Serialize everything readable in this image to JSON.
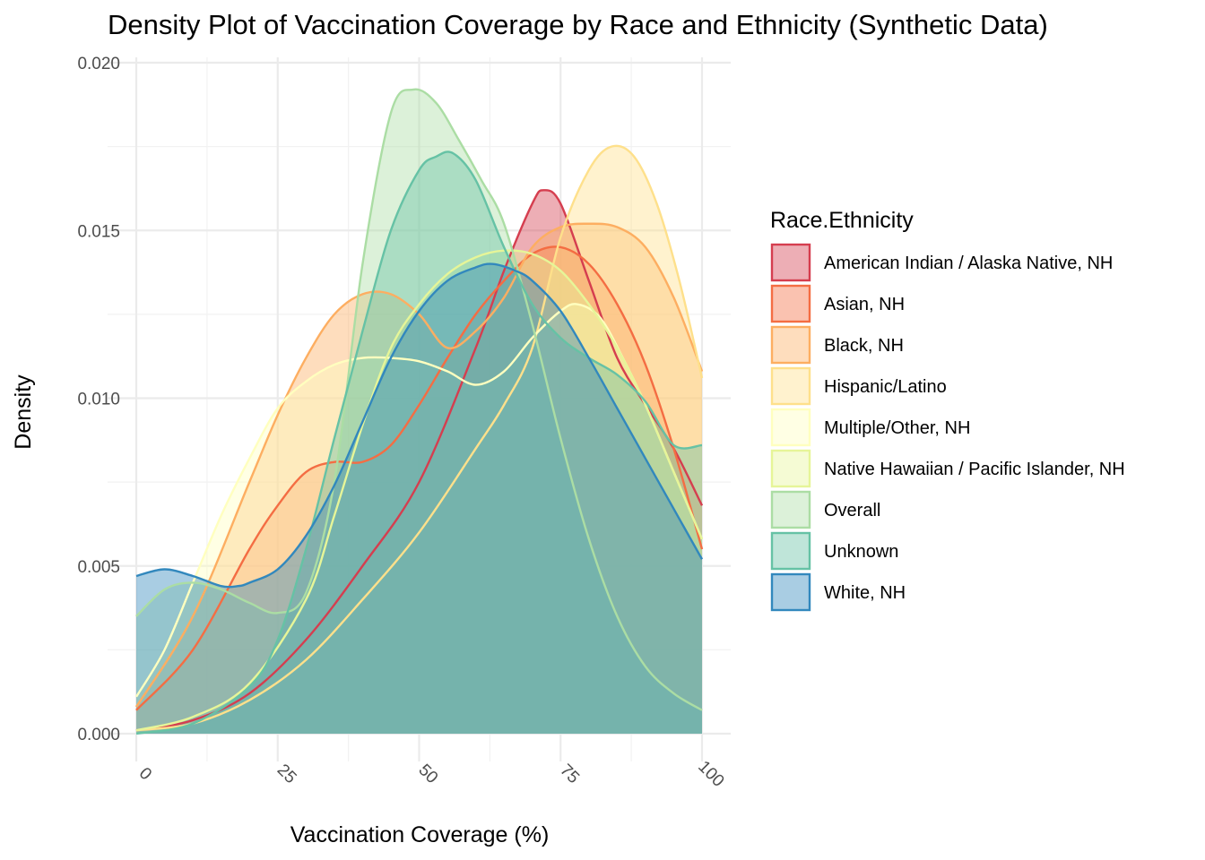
{
  "chart_data": {
    "type": "area",
    "subtype": "density",
    "title": "Density Plot of Vaccination Coverage by Race and Ethnicity (Synthetic Data)",
    "xlabel": "Vaccination Coverage (%)",
    "ylabel": "Density",
    "xlim": [
      0,
      100
    ],
    "ylim": [
      0,
      0.02
    ],
    "x_ticks": [
      0,
      25,
      50,
      75,
      100
    ],
    "x_tick_labels": [
      "0",
      "25",
      "50",
      "75",
      "100"
    ],
    "y_ticks": [
      0,
      0.005,
      0.01,
      0.015,
      0.02
    ],
    "y_tick_labels": [
      "0.000",
      "0.005",
      "0.010",
      "0.015",
      "0.020"
    ],
    "grid": true,
    "legend": {
      "title": "Race.Ethnicity",
      "position": "right"
    },
    "series": [
      {
        "name": "American Indian / Alaska Native, NH",
        "color": "#D53E4F",
        "x": [
          0,
          10,
          20,
          30,
          40,
          50,
          60,
          65,
          70,
          72,
          75,
          80,
          85,
          90,
          95,
          100
        ],
        "y": [
          0.0001,
          0.0004,
          0.0012,
          0.0028,
          0.005,
          0.0075,
          0.0115,
          0.0138,
          0.0158,
          0.0162,
          0.0158,
          0.0135,
          0.0112,
          0.0098,
          0.0085,
          0.0068
        ]
      },
      {
        "name": "Asian, NH",
        "color": "#F46D43",
        "x": [
          0,
          10,
          20,
          25,
          30,
          35,
          40,
          45,
          50,
          55,
          60,
          65,
          70,
          75,
          80,
          85,
          90,
          95,
          100
        ],
        "y": [
          0.0007,
          0.0025,
          0.0055,
          0.0068,
          0.0078,
          0.0081,
          0.0081,
          0.0086,
          0.0098,
          0.0112,
          0.0125,
          0.0135,
          0.0143,
          0.0145,
          0.014,
          0.0128,
          0.011,
          0.0085,
          0.0055
        ]
      },
      {
        "name": "Black, NH",
        "color": "#FDAE61",
        "x": [
          0,
          10,
          20,
          25,
          30,
          35,
          40,
          45,
          50,
          55,
          60,
          65,
          70,
          75,
          80,
          85,
          90,
          95,
          100
        ],
        "y": [
          0.0008,
          0.0035,
          0.0075,
          0.0095,
          0.0112,
          0.0125,
          0.0131,
          0.0131,
          0.0125,
          0.0115,
          0.012,
          0.013,
          0.0145,
          0.0151,
          0.0152,
          0.0151,
          0.0145,
          0.013,
          0.0108
        ]
      },
      {
        "name": "Hispanic/Latino",
        "color": "#FEE08B",
        "x": [
          0,
          10,
          20,
          30,
          40,
          50,
          60,
          65,
          70,
          75,
          80,
          84,
          88,
          92,
          96,
          100
        ],
        "y": [
          0.0001,
          0.0003,
          0.001,
          0.0022,
          0.004,
          0.006,
          0.0085,
          0.0098,
          0.0115,
          0.0148,
          0.0168,
          0.0175,
          0.0172,
          0.0158,
          0.0135,
          0.0106
        ]
      },
      {
        "name": "Multiple/Other, NH",
        "color": "#FFFFBF",
        "x": [
          0,
          5,
          10,
          15,
          20,
          25,
          30,
          35,
          40,
          45,
          50,
          55,
          60,
          65,
          70,
          75,
          78,
          82,
          86,
          90,
          95,
          100
        ],
        "y": [
          0.0011,
          0.0025,
          0.0045,
          0.0065,
          0.0082,
          0.0097,
          0.0105,
          0.011,
          0.0112,
          0.0112,
          0.0111,
          0.0108,
          0.0104,
          0.0108,
          0.0118,
          0.0126,
          0.0128,
          0.0124,
          0.0112,
          0.0098,
          0.0078,
          0.0058
        ]
      },
      {
        "name": "Native Hawaiian / Pacific Islander, NH",
        "color": "#E6F598",
        "x": [
          0,
          10,
          20,
          30,
          35,
          40,
          45,
          50,
          55,
          60,
          65,
          70,
          75,
          80,
          85,
          90,
          95,
          100
        ],
        "y": [
          0.0001,
          0.0005,
          0.0015,
          0.004,
          0.0065,
          0.0092,
          0.0115,
          0.0128,
          0.0137,
          0.0142,
          0.0144,
          0.0143,
          0.0138,
          0.0128,
          0.0115,
          0.0098,
          0.0078,
          0.0058
        ]
      },
      {
        "name": "Overall",
        "color": "#ABDDA4",
        "x": [
          0,
          5,
          10,
          15,
          20,
          25,
          30,
          35,
          40,
          45,
          49,
          53,
          57,
          61,
          65,
          70,
          75,
          80,
          85,
          90,
          95,
          100
        ],
        "y": [
          0.0035,
          0.0043,
          0.0045,
          0.0043,
          0.0039,
          0.0036,
          0.0042,
          0.0075,
          0.014,
          0.0185,
          0.0192,
          0.0188,
          0.0177,
          0.0165,
          0.0152,
          0.0122,
          0.0088,
          0.0058,
          0.0035,
          0.002,
          0.0012,
          0.0007
        ]
      },
      {
        "name": "Unknown",
        "color": "#66C2A5",
        "x": [
          0,
          10,
          20,
          25,
          30,
          35,
          40,
          45,
          50,
          53,
          56,
          60,
          65,
          70,
          75,
          80,
          85,
          90,
          95,
          100
        ],
        "y": [
          0.0,
          0.0003,
          0.0014,
          0.0028,
          0.0055,
          0.0088,
          0.012,
          0.015,
          0.0168,
          0.0172,
          0.0173,
          0.0165,
          0.0145,
          0.0128,
          0.0118,
          0.0112,
          0.0107,
          0.0099,
          0.0086,
          0.0086
        ]
      },
      {
        "name": "White, NH",
        "color": "#3288BD",
        "x": [
          0,
          5,
          10,
          15,
          18,
          20,
          25,
          30,
          35,
          40,
          45,
          50,
          55,
          60,
          63,
          67,
          70,
          75,
          80,
          85,
          90,
          95,
          100
        ],
        "y": [
          0.0047,
          0.0049,
          0.0047,
          0.0044,
          0.0044,
          0.0045,
          0.0049,
          0.0059,
          0.0074,
          0.0093,
          0.0112,
          0.0126,
          0.0135,
          0.0139,
          0.014,
          0.0138,
          0.0135,
          0.0126,
          0.0112,
          0.0097,
          0.0082,
          0.0067,
          0.0052
        ]
      }
    ]
  }
}
